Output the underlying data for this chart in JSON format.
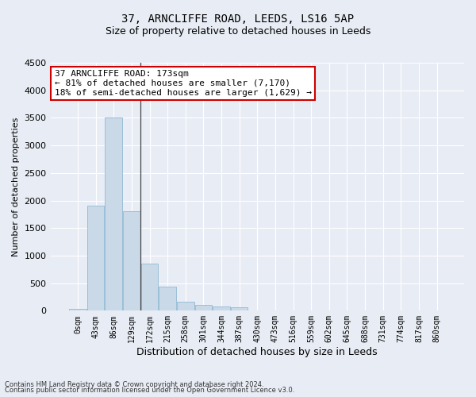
{
  "title": "37, ARNCLIFFE ROAD, LEEDS, LS16 5AP",
  "subtitle": "Size of property relative to detached houses in Leeds",
  "xlabel": "Distribution of detached houses by size in Leeds",
  "ylabel": "Number of detached properties",
  "footnote1": "Contains HM Land Registry data © Crown copyright and database right 2024.",
  "footnote2": "Contains public sector information licensed under the Open Government Licence v3.0.",
  "annotation_title": "37 ARNCLIFFE ROAD: 173sqm",
  "annotation_line1": "← 81% of detached houses are smaller (7,170)",
  "annotation_line2": "18% of semi-detached houses are larger (1,629) →",
  "bar_labels": [
    "0sqm",
    "43sqm",
    "86sqm",
    "129sqm",
    "172sqm",
    "215sqm",
    "258sqm",
    "301sqm",
    "344sqm",
    "387sqm",
    "430sqm",
    "473sqm",
    "516sqm",
    "559sqm",
    "602sqm",
    "645sqm",
    "688sqm",
    "731sqm",
    "774sqm",
    "817sqm",
    "860sqm"
  ],
  "bar_values": [
    30,
    1900,
    3500,
    1800,
    850,
    430,
    160,
    100,
    70,
    60,
    0,
    0,
    0,
    0,
    0,
    0,
    0,
    0,
    0,
    0,
    0
  ],
  "bar_color": "#c9d9e8",
  "bar_edge_color": "#9abfd8",
  "vline_color": "#444444",
  "vline_x_index": 4,
  "ylim": [
    0,
    4500
  ],
  "yticks": [
    0,
    500,
    1000,
    1500,
    2000,
    2500,
    3000,
    3500,
    4000,
    4500
  ],
  "bg_color": "#e8edf5",
  "plot_bg_color": "#e8edf5",
  "grid_color": "#ffffff",
  "title_fontsize": 10,
  "subtitle_fontsize": 9,
  "ylabel_fontsize": 8,
  "xlabel_fontsize": 9,
  "xtick_fontsize": 7,
  "ytick_fontsize": 8,
  "annot_fontsize": 8,
  "annot_box_color": "#ffffff",
  "annot_box_edge": "#cc0000"
}
